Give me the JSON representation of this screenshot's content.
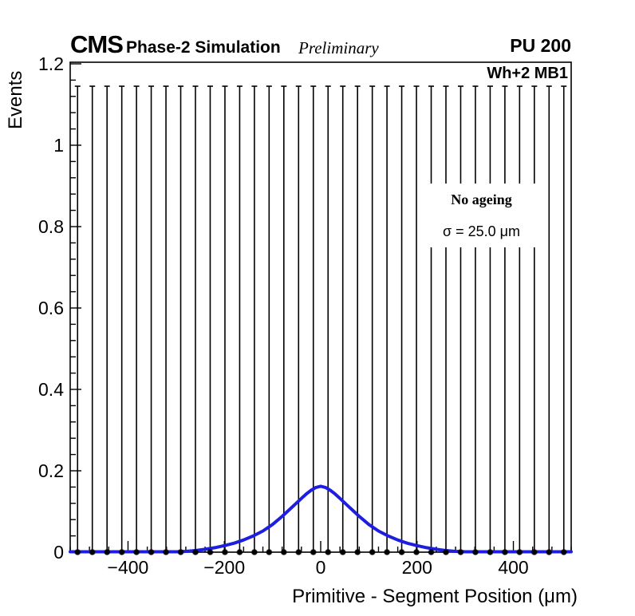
{
  "header": {
    "experiment": "CMS",
    "label": "Phase-2 Simulation",
    "status": "Preliminary",
    "pileup": "PU 200"
  },
  "plot": {
    "corner_label": "Wh+2 MB1",
    "stat_box": {
      "line1": "No ageing",
      "line2": "σ = 25.0 μm"
    }
  },
  "colors": {
    "curve": "#1e1ee0",
    "marker": "#000000",
    "frame": "#000000"
  },
  "chart_data": {
    "type": "line",
    "title": "",
    "xlabel": "Primitive - Segment Position (μm)",
    "ylabel": "Events",
    "xlim": [
      -520,
      520
    ],
    "ylim": [
      0,
      1.2
    ],
    "grid": false,
    "x_ticks": {
      "major": [
        -400,
        -200,
        0,
        200,
        400
      ],
      "labels": [
        "−400",
        "−200",
        "0",
        "200",
        "400"
      ],
      "minor_step": 40
    },
    "y_ticks": {
      "major": [
        0,
        0.2,
        0.4,
        0.6,
        0.8,
        1,
        1.2
      ],
      "labels": [
        "0",
        "0.2",
        "0.4",
        "0.6",
        "0.8",
        "1",
        "1.2"
      ],
      "minor_step": 0.04
    },
    "series": [
      {
        "name": "data-points",
        "type": "scatter-with-errors",
        "marker": "circle",
        "color": "#000000",
        "x": [
          -504.7,
          -474.1,
          -443.5,
          -412.9,
          -382.4,
          -351.8,
          -321.2,
          -290.6,
          -260.0,
          -229.4,
          -198.8,
          -168.2,
          -137.6,
          -107.1,
          -76.5,
          -45.9,
          -15.3,
          15.3,
          45.9,
          76.5,
          107.1,
          137.6,
          168.2,
          198.8,
          229.4,
          260.0,
          290.6,
          321.2,
          351.8,
          382.4,
          412.9,
          443.5,
          474.1,
          504.7
        ],
        "y_all": 0,
        "error_low": 0,
        "error_high": 1.145
      },
      {
        "name": "fit-curve",
        "type": "line",
        "color": "#1e1ee0",
        "points": [
          [
            -520,
            0.001
          ],
          [
            -480,
            0.001
          ],
          [
            -440,
            0.001
          ],
          [
            -400,
            0.001
          ],
          [
            -360,
            0.001
          ],
          [
            -320,
            0.001
          ],
          [
            -300,
            0.001
          ],
          [
            -280,
            0.002
          ],
          [
            -260,
            0.004
          ],
          [
            -240,
            0.007
          ],
          [
            -220,
            0.011
          ],
          [
            -200,
            0.016
          ],
          [
            -180,
            0.022
          ],
          [
            -160,
            0.03
          ],
          [
            -140,
            0.04
          ],
          [
            -120,
            0.052
          ],
          [
            -100,
            0.068
          ],
          [
            -80,
            0.088
          ],
          [
            -60,
            0.11
          ],
          [
            -40,
            0.132
          ],
          [
            -30,
            0.143
          ],
          [
            -20,
            0.152
          ],
          [
            -10,
            0.159
          ],
          [
            0,
            0.162
          ],
          [
            10,
            0.159
          ],
          [
            20,
            0.152
          ],
          [
            30,
            0.143
          ],
          [
            40,
            0.132
          ],
          [
            60,
            0.11
          ],
          [
            80,
            0.088
          ],
          [
            100,
            0.068
          ],
          [
            120,
            0.052
          ],
          [
            140,
            0.04
          ],
          [
            160,
            0.03
          ],
          [
            180,
            0.022
          ],
          [
            200,
            0.016
          ],
          [
            220,
            0.011
          ],
          [
            240,
            0.007
          ],
          [
            260,
            0.004
          ],
          [
            280,
            0.002
          ],
          [
            300,
            0.001
          ],
          [
            320,
            0.001
          ],
          [
            360,
            0.001
          ],
          [
            400,
            0.001
          ],
          [
            440,
            0.001
          ],
          [
            480,
            0.001
          ],
          [
            520,
            0.001
          ]
        ]
      }
    ],
    "annotations": {
      "corner_label": "Wh+2 MB1",
      "stat_lines": [
        "No ageing",
        "σ = 25.0 μm"
      ],
      "header": [
        "CMS",
        "Phase-2 Simulation",
        "Preliminary",
        "PU 200"
      ]
    },
    "legend": {
      "visible": false
    }
  }
}
